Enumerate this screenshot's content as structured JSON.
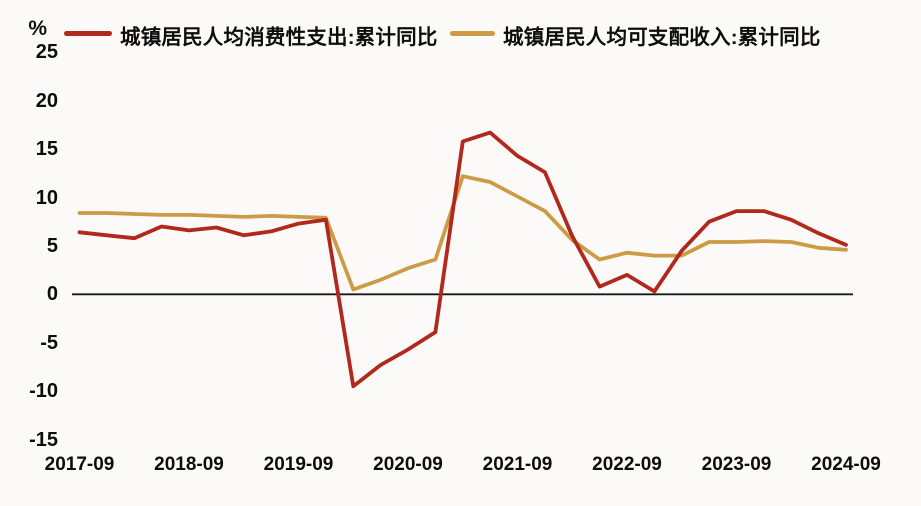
{
  "page": {
    "background_color": "#fbfaf9"
  },
  "header": {
    "unit_label": "%",
    "legend": [
      {
        "label": "城镇居民人均消费性支出:累计同比",
        "color": "#b1281c"
      },
      {
        "label": "城镇居民人均可支配收入:累计同比",
        "color": "#cd9b46"
      }
    ]
  },
  "chart_data": {
    "type": "line",
    "title": "",
    "ylabel": "%",
    "xlabel": "",
    "ylim": [
      -15,
      25
    ],
    "y_ticks": [
      25,
      20,
      15,
      10,
      5,
      0,
      -5,
      -10,
      -15
    ],
    "x_tick_labels": [
      "2017-09",
      "2018-09",
      "2019-09",
      "2020-09",
      "2021-09",
      "2022-09",
      "2023-09",
      "2024-09"
    ],
    "grid": false,
    "zero_line": true,
    "zero_line_color": "#1a1a1a",
    "legend_position": "top",
    "x": [
      "2017-09",
      "2017-12",
      "2018-03",
      "2018-06",
      "2018-09",
      "2018-12",
      "2019-03",
      "2019-06",
      "2019-09",
      "2019-12",
      "2020-03",
      "2020-06",
      "2020-09",
      "2020-12",
      "2021-03",
      "2021-06",
      "2021-09",
      "2021-12",
      "2022-03",
      "2022-06",
      "2022-09",
      "2022-12",
      "2023-03",
      "2023-06",
      "2023-09",
      "2023-12",
      "2024-03",
      "2024-06",
      "2024-09"
    ],
    "series": [
      {
        "name": "城镇居民人均消费性支出:累计同比",
        "color": "#b1281c",
        "values": [
          6.4,
          6.1,
          5.8,
          7.0,
          6.6,
          6.9,
          6.1,
          6.5,
          7.3,
          7.7,
          -9.5,
          -7.3,
          -5.7,
          -3.9,
          15.8,
          16.7,
          14.3,
          12.6,
          6.0,
          0.8,
          2.0,
          0.3,
          4.5,
          7.5,
          8.6,
          8.6,
          7.7,
          6.3,
          5.1
        ]
      },
      {
        "name": "城镇居民人均可支配收入:累计同比",
        "color": "#cd9b46",
        "values": [
          8.4,
          8.4,
          8.3,
          8.2,
          8.2,
          8.1,
          8.0,
          8.1,
          8.0,
          7.9,
          0.5,
          1.5,
          2.7,
          3.6,
          12.2,
          11.6,
          10.1,
          8.6,
          5.6,
          3.6,
          4.3,
          4.0,
          4.0,
          5.4,
          5.4,
          5.5,
          5.4,
          4.8,
          4.6
        ]
      }
    ]
  }
}
